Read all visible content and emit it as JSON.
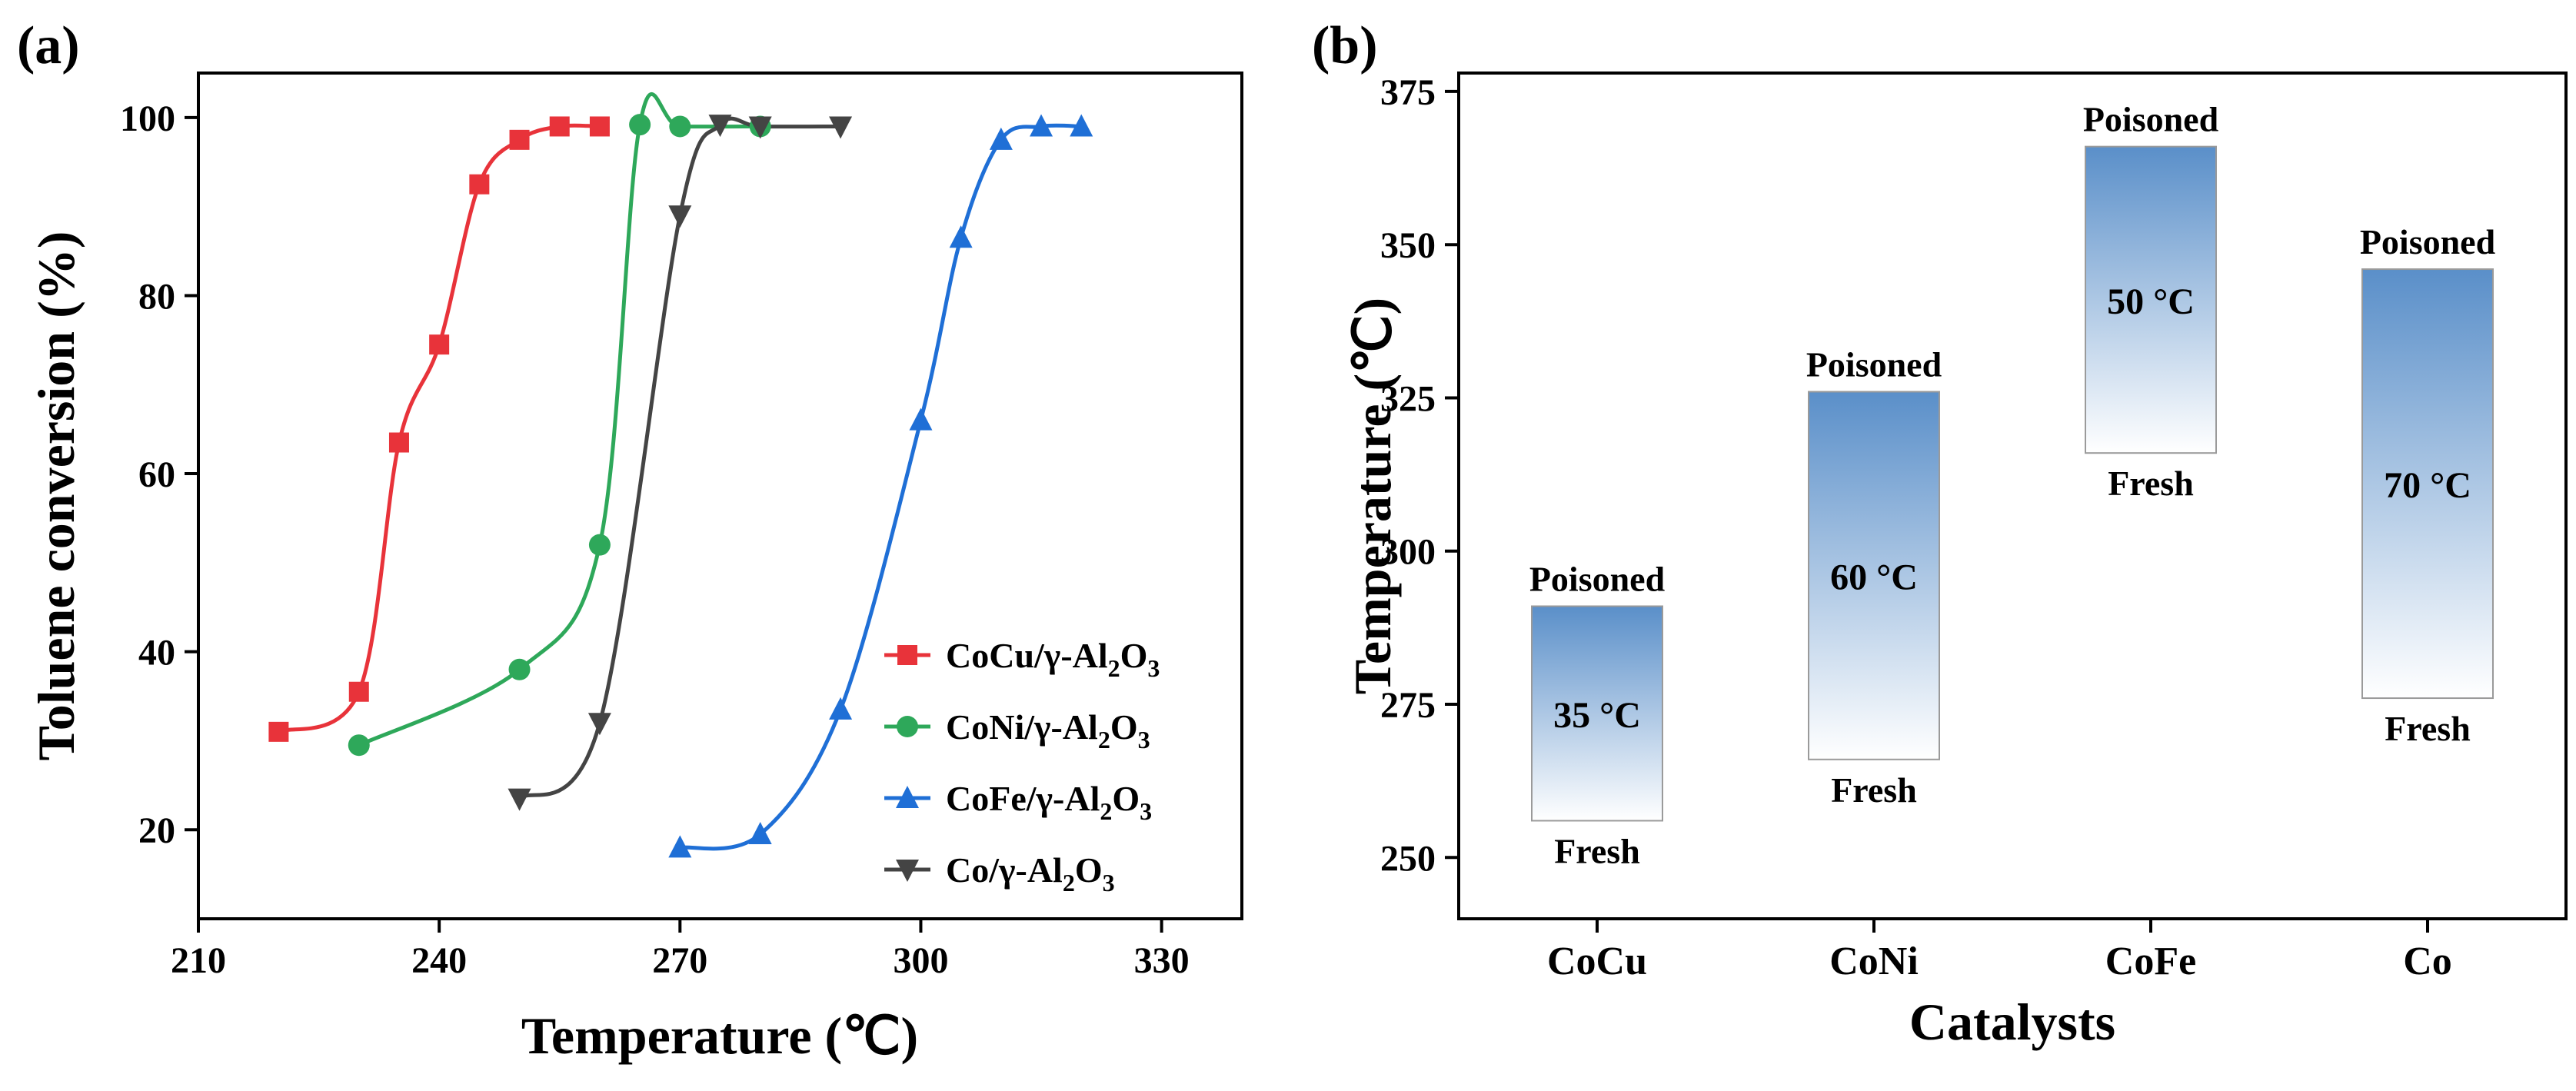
{
  "chart_data": [
    {
      "panel": "(a)",
      "type": "line",
      "xlabel": "Temperature (℃)",
      "ylabel": "Toluene conversion (%)",
      "xlim": [
        210,
        340
      ],
      "ylim": [
        10,
        105
      ],
      "xticks": [
        210,
        240,
        270,
        300,
        330
      ],
      "yticks": [
        20,
        40,
        60,
        80,
        100
      ],
      "legend_position": "bottom-right",
      "series": [
        {
          "name": "CoCu/γ-Al2O3",
          "label_main": "CoCu/γ-Al",
          "label_sub": "2",
          "label_mid": "O",
          "label_sub2": "3",
          "color": "#e8333a",
          "marker": "square",
          "x": [
            220,
            230,
            235,
            240,
            245,
            250,
            255,
            260
          ],
          "y": [
            31,
            35.5,
            63.5,
            74.5,
            92.5,
            97.5,
            99,
            99
          ]
        },
        {
          "name": "CoNi/γ-Al2O3",
          "label_main": "CoNi/γ-Al",
          "label_sub": "2",
          "label_mid": "O",
          "label_sub2": "3",
          "color": "#2ea85a",
          "marker": "circle",
          "x": [
            230,
            250,
            260,
            265,
            270,
            280
          ],
          "y": [
            29.5,
            38,
            52,
            99.2,
            99,
            99
          ]
        },
        {
          "name": "CoFe/γ-Al2O3",
          "label_main": "CoFe/γ-Al",
          "label_sub": "2",
          "label_mid": "O",
          "label_sub2": "3",
          "color": "#1f6fd6",
          "marker": "triangle-up",
          "x": [
            270,
            280,
            290,
            300,
            305,
            310,
            315,
            320
          ],
          "y": [
            18,
            19.5,
            33.5,
            66,
            86.5,
            97.5,
            99,
            99
          ]
        },
        {
          "name": "Co/γ-Al2O3",
          "label_main": "Co/γ-Al",
          "label_sub": "2",
          "label_mid": "O",
          "label_sub2": "3",
          "color": "#444444",
          "marker": "triangle-down",
          "x": [
            250,
            260,
            270,
            275,
            280,
            290
          ],
          "y": [
            23.5,
            32,
            89,
            99.2,
            99,
            99
          ]
        }
      ]
    },
    {
      "panel": "(b)",
      "type": "bar",
      "subtype": "floating-range",
      "xlabel": "Catalysts",
      "ylabel": "Temperature (℃)",
      "ylim": [
        240,
        378
      ],
      "yticks": [
        250,
        275,
        300,
        325,
        350,
        375
      ],
      "categories": [
        "CoCu",
        "CoNi",
        "CoFe",
        "Co"
      ],
      "fresh": [
        256,
        266,
        316,
        276
      ],
      "poisoned": [
        291,
        326,
        366,
        346
      ],
      "differences": [
        "35 °C",
        "60 °C",
        "50 °C",
        "70 °C"
      ],
      "top_label": "Poisoned",
      "bottom_label": "Fresh",
      "bar_color_top": "#5a8fc9",
      "bar_color_bottom": "#ffffff"
    }
  ]
}
